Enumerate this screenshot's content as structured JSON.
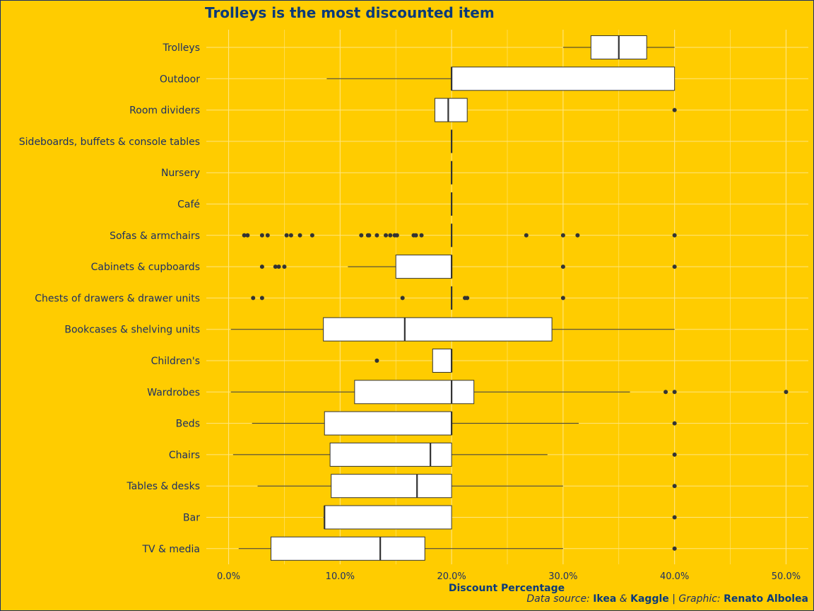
{
  "chart_data": {
    "type": "boxplot",
    "title": "Trolleys is the most discounted item",
    "xlabel": "Discount Percentage",
    "ylabel": "",
    "xlim": [
      -2,
      52
    ],
    "x_ticks": [
      0,
      10,
      20,
      30,
      40,
      50
    ],
    "x_tick_labels": [
      "0.0%",
      "10.0%",
      "20.0%",
      "30.0%",
      "40.0%",
      "50.0%"
    ],
    "grid": true,
    "colors": {
      "background": "#FFCC00",
      "box_fill": "#FFFFFF",
      "line": "#333333",
      "grid": "#FFE680",
      "text": "#1B2F66",
      "accent": "#0A3A7A"
    },
    "categories": [
      {
        "name": "Trolleys",
        "min": 30,
        "q1": 32.5,
        "median": 35,
        "q3": 37.5,
        "max": 40,
        "outliers": []
      },
      {
        "name": "Outdoor",
        "min": 8.8,
        "q1": 20,
        "median": 20,
        "q3": 40,
        "max": 40,
        "outliers": []
      },
      {
        "name": "Room dividers",
        "min": 18.5,
        "q1": 18.5,
        "median": 19.7,
        "q3": 21.4,
        "max": 21.4,
        "outliers": [
          40
        ]
      },
      {
        "name": "Sideboards, buffets & console tables",
        "min": 20,
        "q1": 20,
        "median": 20,
        "q3": 20,
        "max": 20,
        "outliers": []
      },
      {
        "name": "Nursery",
        "min": 20,
        "q1": 20,
        "median": 20,
        "q3": 20,
        "max": 20,
        "outliers": []
      },
      {
        "name": "Café",
        "min": 20,
        "q1": 20,
        "median": 20,
        "q3": 20,
        "max": 20,
        "outliers": []
      },
      {
        "name": "Sofas & armchairs",
        "min": 20,
        "q1": 20,
        "median": 20,
        "q3": 20,
        "max": 20,
        "outliers": [
          1.4,
          1.7,
          3.0,
          3.5,
          5.2,
          5.6,
          6.4,
          7.5,
          11.9,
          12.5,
          12.6,
          13.3,
          14.1,
          14.5,
          14.9,
          15.1,
          16.6,
          16.8,
          17.3,
          26.7,
          30,
          31.3,
          40
        ]
      },
      {
        "name": "Cabinets & cupboards",
        "min": 10.7,
        "q1": 15,
        "median": 20,
        "q3": 20,
        "max": 20,
        "outliers": [
          3.0,
          4.2,
          4.5,
          5.0,
          30,
          40
        ]
      },
      {
        "name": "Chests of drawers & drawer units",
        "min": 20,
        "q1": 20,
        "median": 20,
        "q3": 20,
        "max": 20,
        "outliers": [
          2.2,
          3.0,
          15.6,
          21.2,
          21.4,
          30
        ]
      },
      {
        "name": "Bookcases & shelving units",
        "min": 0.2,
        "q1": 8.5,
        "median": 15.8,
        "q3": 29,
        "max": 40,
        "outliers": []
      },
      {
        "name": "Children's",
        "min": 18.3,
        "q1": 18.3,
        "median": 20,
        "q3": 20,
        "max": 20,
        "outliers": [
          13.3
        ]
      },
      {
        "name": "Wardrobes",
        "min": 0.2,
        "q1": 11.3,
        "median": 20,
        "q3": 22,
        "max": 36,
        "outliers": [
          39.2,
          40,
          50
        ]
      },
      {
        "name": "Beds",
        "min": 2.1,
        "q1": 8.6,
        "median": 20,
        "q3": 20,
        "max": 31.4,
        "outliers": [
          40
        ]
      },
      {
        "name": "Chairs",
        "min": 0.4,
        "q1": 9.1,
        "median": 18.1,
        "q3": 20,
        "max": 28.6,
        "outliers": [
          40
        ]
      },
      {
        "name": "Tables & desks",
        "min": 2.6,
        "q1": 9.2,
        "median": 16.9,
        "q3": 20,
        "max": 30,
        "outliers": [
          40
        ]
      },
      {
        "name": "Bar",
        "min": 8.5,
        "q1": 8.6,
        "median": 8.6,
        "q3": 20,
        "max": 20,
        "outliers": [
          40
        ]
      },
      {
        "name": "TV & media",
        "min": 0.9,
        "q1": 3.8,
        "median": 13.6,
        "q3": 17.6,
        "max": 30,
        "outliers": [
          40
        ]
      }
    ]
  },
  "caption": {
    "prefix": "Data source: ",
    "source1": "Ikea",
    "amp": " & ",
    "source2": "Kaggle",
    "separator": " | ",
    "graphic_label": "Graphic: ",
    "author": "Renato Albolea"
  }
}
